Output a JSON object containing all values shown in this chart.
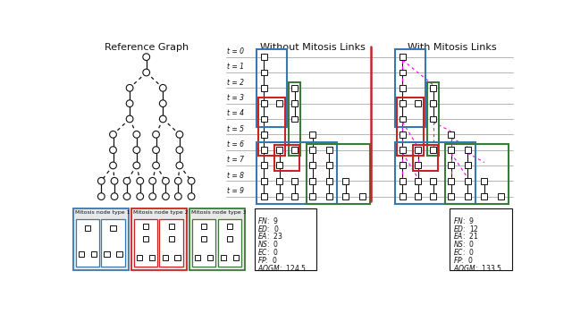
{
  "title_ref": "Reference Graph",
  "title_without": "Without Mitosis Links",
  "title_with": "With Mitosis Links",
  "time_labels": [
    "t = 0",
    "t = 1",
    "t = 2",
    "t = 3",
    "t = 4",
    "t = 5",
    "t = 6",
    "t = 7",
    "t = 8",
    "t = 9"
  ],
  "stats_without": [
    [
      "FN",
      "9"
    ],
    [
      "ED",
      "0"
    ],
    [
      "EA",
      "23"
    ],
    [
      "NS",
      "0"
    ],
    [
      "EC",
      "0"
    ],
    [
      "FP",
      "0"
    ],
    [
      "AOGM",
      "124.5"
    ]
  ],
  "stats_with": [
    [
      "FN",
      "9"
    ],
    [
      "ED",
      "12"
    ],
    [
      "EA",
      "21"
    ],
    [
      "NS",
      "0"
    ],
    [
      "EC",
      "0"
    ],
    [
      "FP",
      "0"
    ],
    [
      "AOGM",
      "133.5"
    ]
  ],
  "legend_types": [
    "Mitosis node type 1",
    "Mitosis node type 2",
    "Mitosis node type 3"
  ],
  "blue": "#3878b0",
  "red": "#cc2222",
  "green": "#3a7a3a",
  "magenta": "#ff00ff",
  "black": "#111111",
  "gray_line": "#aaaaaa",
  "bg": "#ffffff"
}
